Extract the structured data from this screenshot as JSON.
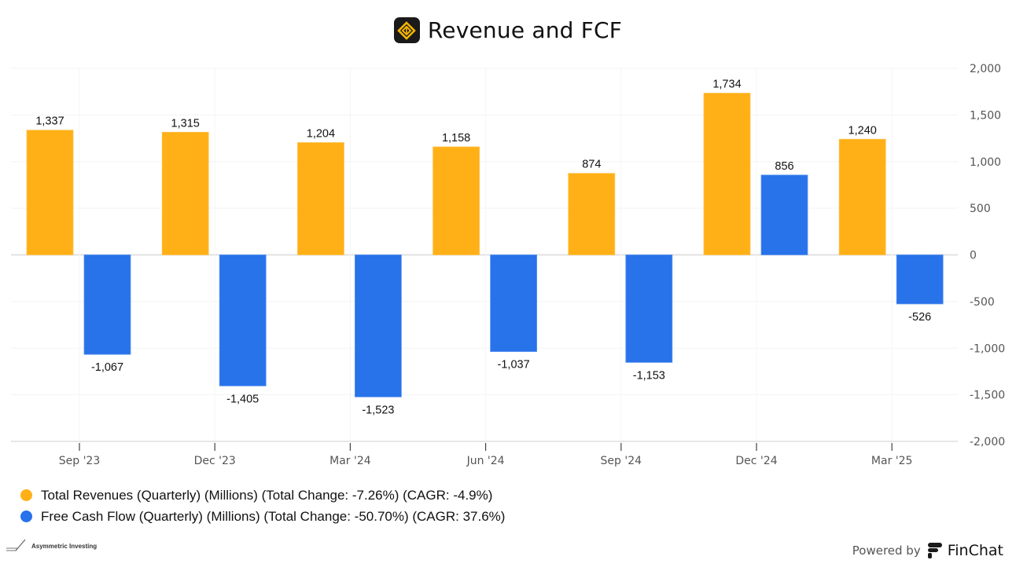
{
  "header": {
    "title": "Revenue and FCF",
    "logo_icon": "company-logo-icon"
  },
  "chart_data": {
    "type": "bar",
    "title": "Revenue and FCF",
    "xlabel": "",
    "ylabel": "",
    "categories": [
      "Sep '23",
      "Dec '23",
      "Mar '24",
      "Jun '24",
      "Sep '24",
      "Dec '24",
      "Mar '25"
    ],
    "series": [
      {
        "name": "Total Revenues (Quarterly) (Millions) (Total Change: -7.26%) (CAGR: -4.9%)",
        "color": "#FFB016",
        "values": [
          1337,
          1315,
          1204,
          1158,
          874,
          1734,
          1240
        ],
        "labels": [
          "1,337",
          "1,315",
          "1,204",
          "1,158",
          "874",
          "1,734",
          "1,240"
        ]
      },
      {
        "name": "Free Cash Flow (Quarterly) (Millions) (Total Change: -50.70%) (CAGR: 37.6%)",
        "color": "#2872EA",
        "values": [
          -1067,
          -1405,
          -1523,
          -1037,
          -1153,
          856,
          -526
        ],
        "labels": [
          "-1,067",
          "-1,405",
          "-1,523",
          "-1,037",
          "-1,153",
          "856",
          "-526"
        ]
      }
    ],
    "ylim": [
      -2000,
      2000
    ],
    "yticks": [
      2000,
      1500,
      1000,
      500,
      0,
      -500,
      -1000,
      -1500,
      -2000
    ],
    "ytick_labels": [
      "2,000",
      "1,500",
      "1,000",
      "500",
      "0",
      "-500",
      "-1,000",
      "-1,500",
      "-2,000"
    ],
    "y_axis_side": "right",
    "grid": true,
    "legend_position": "bottom-left"
  },
  "legend": [
    {
      "label": "Total Revenues (Quarterly) (Millions) (Total Change: -7.26%) (CAGR: -4.9%)",
      "color": "#FFB016"
    },
    {
      "label": "Free Cash Flow (Quarterly) (Millions) (Total Change: -50.70%) (CAGR: 37.6%)",
      "color": "#2872EA"
    }
  ],
  "footer": {
    "watermark": "Asymmetric Investing",
    "powered_by": "Powered by",
    "brand": "FinChat"
  }
}
